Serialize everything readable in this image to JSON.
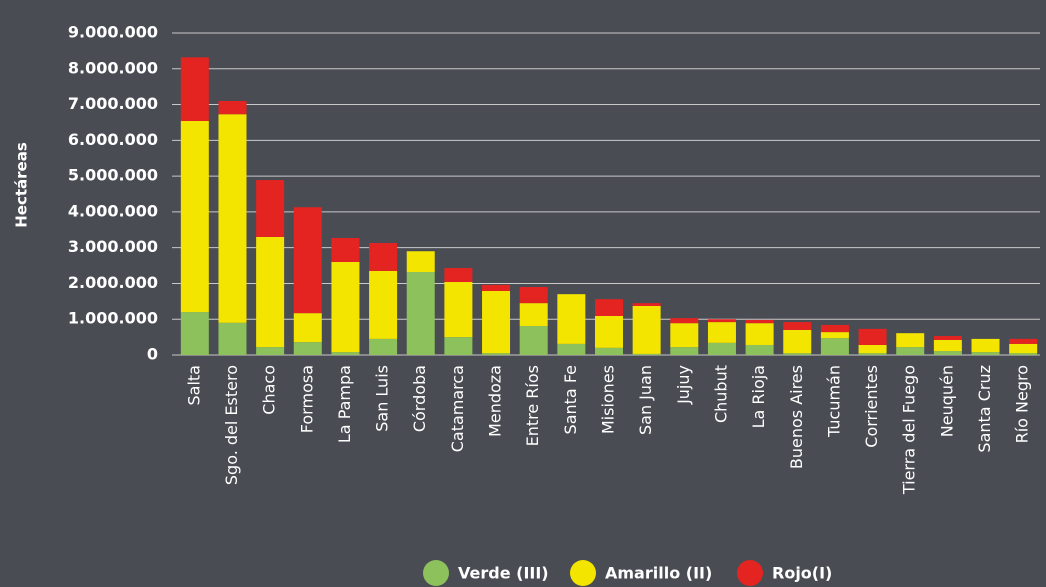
{
  "chart_data": {
    "type": "stacked_bar",
    "y_label": "Hectáreas",
    "categories": [
      "Salta",
      "Sgo. del Estero",
      "Chaco",
      "Formosa",
      "La Pampa",
      "San Luis",
      "Córdoba",
      "Catamarca",
      "Mendoza",
      "Entre Ríos",
      "Santa Fe",
      "Misiones",
      "San Juan",
      "Jujuy",
      "Chubut",
      "La Rioja",
      "Buenos Aires",
      "Tucumán",
      "Corrientes",
      "Tierra del Fuego",
      "Neuquén",
      "Santa Cruz",
      "Río Negro"
    ],
    "series": [
      {
        "name": "Verde (III)",
        "color": "#8dc15b",
        "values": [
          1200000,
          900000,
          220000,
          360000,
          80000,
          450000,
          2320000,
          500000,
          50000,
          810000,
          310000,
          200000,
          30000,
          220000,
          340000,
          280000,
          50000,
          470000,
          50000,
          220000,
          110000,
          80000,
          50000
        ]
      },
      {
        "name": "Amarillo (II)",
        "color": "#f4e500",
        "values": [
          5340000,
          5830000,
          3080000,
          810000,
          2520000,
          1900000,
          580000,
          1540000,
          1740000,
          640000,
          1390000,
          890000,
          1340000,
          670000,
          580000,
          610000,
          650000,
          170000,
          230000,
          390000,
          310000,
          370000,
          260000
        ]
      },
      {
        "name": "Rojo(I)",
        "color": "#e42421",
        "values": [
          1780000,
          370000,
          1590000,
          2960000,
          670000,
          780000,
          0,
          390000,
          170000,
          450000,
          0,
          470000,
          80000,
          140000,
          80000,
          90000,
          220000,
          200000,
          450000,
          0,
          110000,
          0,
          140000
        ]
      }
    ],
    "ylim": [
      0,
      9000000
    ],
    "yticks": [
      0,
      {
        "value": 1000000,
        "label": "1.000.000"
      },
      {
        "value": 2000000,
        "label": "2.000.000"
      },
      {
        "value": 3000000,
        "label": "3.000.000"
      },
      {
        "value": 4000000,
        "label": "4.000.000"
      },
      {
        "value": 5000000,
        "label": "5.000.000"
      },
      {
        "value": 6000000,
        "label": "6.000.000"
      },
      {
        "value": 7000000,
        "label": "7.000.000"
      },
      {
        "value": 8000000,
        "label": "8.000.000"
      },
      {
        "value": 9000000,
        "label": "9.000.000"
      }
    ],
    "grid": true,
    "legend": "bottom"
  }
}
